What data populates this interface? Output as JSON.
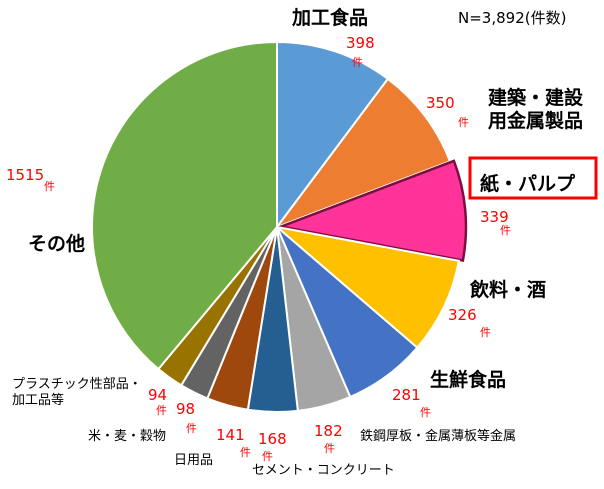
{
  "chart_data": {
    "type": "pie",
    "title": "",
    "total_label": "N=3,892(件数)",
    "unit_label": "件",
    "slices": [
      {
        "label": "加工食品",
        "value": 398,
        "color": "#5b9bd5"
      },
      {
        "label": "建築・建設\n用金属製品",
        "value": 350,
        "color": "#ed7d31"
      },
      {
        "label": "紙・パルプ",
        "value": 339,
        "color": "#ff3399",
        "highlight": true
      },
      {
        "label": "飲料・酒",
        "value": 326,
        "color": "#ffc000"
      },
      {
        "label": "生鮮食品",
        "value": 281,
        "color": "#4472c4"
      },
      {
        "label": "鉄鋼厚板・金属薄板等金属",
        "value": 182,
        "color": "#a5a5a5"
      },
      {
        "label": "セメント・コンクリート",
        "value": 168,
        "color": "#255e91"
      },
      {
        "label": "日用品",
        "value": 141,
        "color": "#9e480e"
      },
      {
        "label": "米・麦・穀物",
        "value": 98,
        "color": "#636363"
      },
      {
        "label": "プラスチック性部品・\n加工品等",
        "value": 94,
        "color": "#997300"
      },
      {
        "label": "その他",
        "value": 1515,
        "color": "#70ad47"
      }
    ]
  }
}
